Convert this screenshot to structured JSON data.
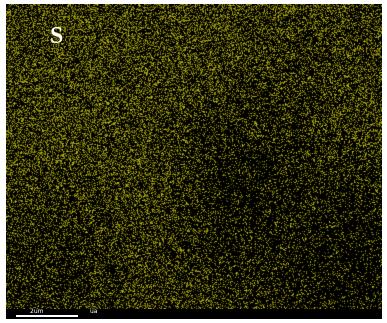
{
  "map": {
    "element_label": "S",
    "signal_color": "#c9c41a",
    "background_color": "#000000"
  },
  "scale_bar": {
    "label": "2um",
    "unit_note": "ua"
  }
}
